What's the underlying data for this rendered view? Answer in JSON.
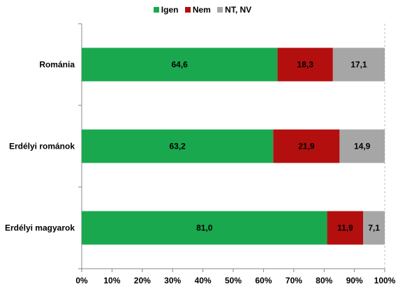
{
  "chart_data": {
    "type": "bar",
    "orientation": "horizontal",
    "stacked": true,
    "categories": [
      "Románia",
      "Erdélyi románok",
      "Erdélyi magyarok"
    ],
    "series": [
      {
        "name": "Igen",
        "color": "#1aa84f",
        "values": [
          64.6,
          63.2,
          81.0
        ],
        "labels": [
          "64,6",
          "63,2",
          "81,0"
        ]
      },
      {
        "name": "Nem",
        "color": "#b30f0f",
        "values": [
          18.3,
          21.9,
          11.9
        ],
        "labels": [
          "18,3",
          "21,9",
          "11,9"
        ]
      },
      {
        "name": "NT, NV",
        "color": "#a6a6a6",
        "values": [
          17.1,
          14.9,
          7.1
        ],
        "labels": [
          "17,1",
          "14,9",
          "7,1"
        ]
      }
    ],
    "xlim": [
      0,
      100
    ],
    "x_ticks": [
      "0%",
      "10%",
      "20%",
      "30%",
      "40%",
      "50%",
      "60%",
      "70%",
      "80%",
      "90%",
      "100%"
    ],
    "grid": true,
    "legend_position": "top-center"
  }
}
